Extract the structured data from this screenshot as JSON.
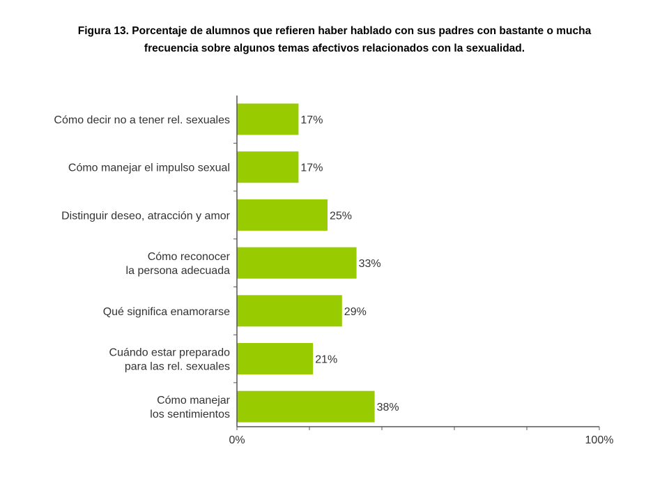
{
  "title_line1": "Figura 13.  Porcentaje de alumnos que refieren haber hablado con sus padres con bastante o mucha",
  "title_line2": "frecuencia sobre algunos temas afectivos relacionados con la sexualidad.",
  "chart_data": {
    "type": "bar",
    "orientation": "horizontal",
    "title": "Figura 13.  Porcentaje de alumnos que refieren haber hablado con sus padres con bastante o mucha frecuencia sobre algunos temas afectivos relacionados con la sexualidad.",
    "categories": [
      [
        "Cómo decir no a tener rel. sexuales"
      ],
      [
        "Cómo manejar el impulso sexual"
      ],
      [
        "Distinguir deseo, atracción y amor"
      ],
      [
        "Cómo reconocer",
        "la persona adecuada"
      ],
      [
        "Qué significa enamorarse"
      ],
      [
        "Cuándo estar preparado",
        "para las rel. sexuales"
      ],
      [
        "Cómo manejar",
        "los sentimientos"
      ]
    ],
    "values": [
      17,
      17,
      25,
      33,
      29,
      21,
      38
    ],
    "value_labels": [
      "17%",
      "17%",
      "25%",
      "33%",
      "29%",
      "21%",
      "38%"
    ],
    "xlim": [
      0,
      100
    ],
    "x_tick_labels": [
      "0%",
      "100%"
    ],
    "bar_color": "#99cc00",
    "grid": false,
    "legend": "none"
  }
}
